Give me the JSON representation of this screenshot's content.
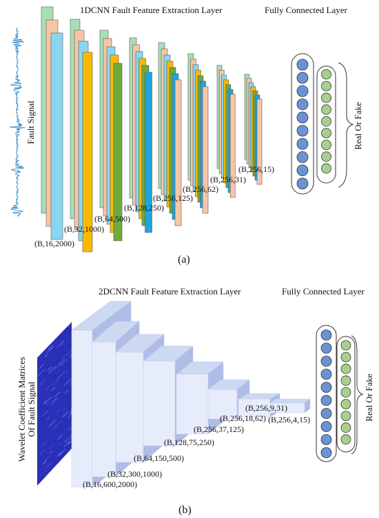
{
  "colors": {
    "green": "#a8dfb6",
    "peach": "#f7c5a6",
    "sky": "#88d6f2",
    "gold": "#f9b900",
    "olive": "#6faa3c",
    "blue": "#1ea5e0",
    "node_blue": "#6a93d4",
    "node_green": "#a8d08d",
    "block_front": "#e6ecfa",
    "block_top": "#cdd8f1",
    "block_side": "#aebce6",
    "wavelet": "#2a2fb8"
  },
  "panel_a": {
    "title_conv": "1DCNN Fault Feature Extraction Layer",
    "title_fc": "Fully Connected Layer",
    "input_label": "Fault Signal",
    "output_label": "Real Or Fake",
    "caption": "(a)",
    "shapes": [
      "(B,16,2000)",
      "(B,32,1000)",
      "(B,64,500)",
      "(B,128,250)",
      "(B,256,125)",
      "(B,256,62)",
      "(B,256,31)",
      "(B,256,15)"
    ]
  },
  "panel_b": {
    "title_conv": "2DCNN Fault Feature Extraction Layer",
    "title_fc": "Fully Connected Layer",
    "input_label_1": "Wavelet Coefficient Matrices",
    "input_label_2": "Of Fault Signal",
    "output_label": "Real Or Fake",
    "caption": "(b)",
    "shapes": [
      "(B,16,600,2000)",
      "(B,32,300,1000)",
      "(B,64,150,500)",
      "(B,128,75,250)",
      "(B,256,37,125)",
      "(B,256,18,62)",
      "(B,256,9,31)",
      "(B,256,4,15)"
    ]
  }
}
